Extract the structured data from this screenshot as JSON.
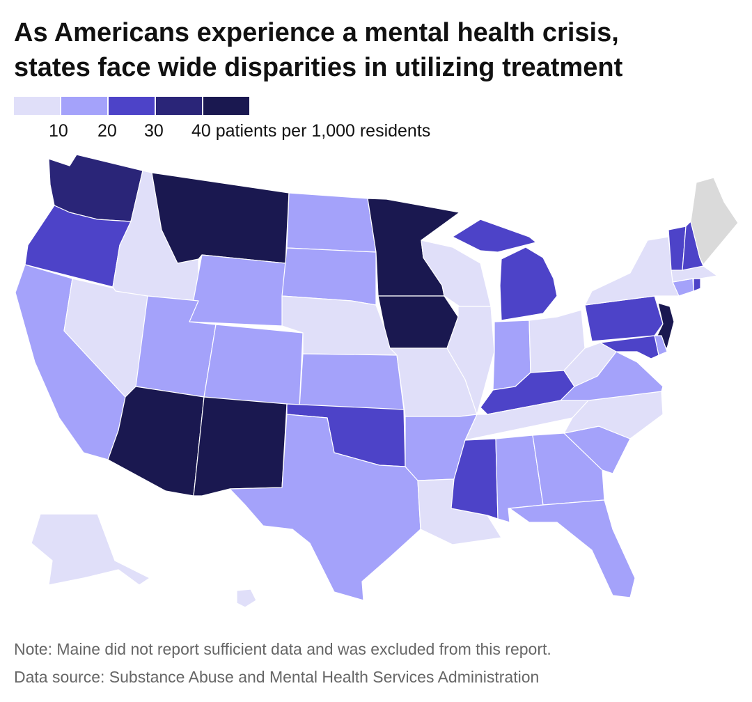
{
  "title": {
    "line1": "As Americans experience a mental health crisis,",
    "line2": "states face wide disparities in utilizing treatment"
  },
  "legend": {
    "colors": [
      "#e0dff9",
      "#a4a2fa",
      "#4d43c8",
      "#2a2578",
      "#1a1850"
    ],
    "ticks": [
      "10",
      "20",
      "30",
      "40 patients per 1,000 residents"
    ]
  },
  "colors": {
    "no_data": "#dadada"
  },
  "note": "Note: Maine did not report sufficient data and was excluded from this report.",
  "source": "Data source: Substance Abuse and Mental Health Services Administration",
  "map_data": {
    "type": "choropleth",
    "bins": [
      {
        "class": 0,
        "range": "<10"
      },
      {
        "class": 1,
        "range": "10–20"
      },
      {
        "class": 2,
        "range": "20–30"
      },
      {
        "class": 3,
        "range": "30–40"
      },
      {
        "class": 4,
        "range": "40+"
      }
    ],
    "states": [
      {
        "id": "WA",
        "class": 3
      },
      {
        "id": "OR",
        "class": 2
      },
      {
        "id": "CA",
        "class": 1
      },
      {
        "id": "NV",
        "class": 0
      },
      {
        "id": "ID",
        "class": 0
      },
      {
        "id": "MT",
        "class": 4
      },
      {
        "id": "WY",
        "class": 1
      },
      {
        "id": "UT",
        "class": 1
      },
      {
        "id": "AZ",
        "class": 4
      },
      {
        "id": "CO",
        "class": 1
      },
      {
        "id": "NM",
        "class": 4
      },
      {
        "id": "ND",
        "class": 1
      },
      {
        "id": "SD",
        "class": 1
      },
      {
        "id": "NE",
        "class": 0
      },
      {
        "id": "KS",
        "class": 1
      },
      {
        "id": "OK",
        "class": 2
      },
      {
        "id": "TX",
        "class": 1
      },
      {
        "id": "MN",
        "class": 4
      },
      {
        "id": "IA",
        "class": 4
      },
      {
        "id": "MO",
        "class": 0
      },
      {
        "id": "AR",
        "class": 1
      },
      {
        "id": "LA",
        "class": 0
      },
      {
        "id": "WI",
        "class": 0
      },
      {
        "id": "IL",
        "class": 0
      },
      {
        "id": "MI",
        "class": 2
      },
      {
        "id": "IN",
        "class": 1
      },
      {
        "id": "OH",
        "class": 0
      },
      {
        "id": "KY",
        "class": 2
      },
      {
        "id": "TN",
        "class": 0
      },
      {
        "id": "MS",
        "class": 2
      },
      {
        "id": "AL",
        "class": 1
      },
      {
        "id": "GA",
        "class": 1
      },
      {
        "id": "FL",
        "class": 1
      },
      {
        "id": "SC",
        "class": 1
      },
      {
        "id": "NC",
        "class": 0
      },
      {
        "id": "VA",
        "class": 1
      },
      {
        "id": "WV",
        "class": 0
      },
      {
        "id": "PA",
        "class": 2
      },
      {
        "id": "NY",
        "class": 0
      },
      {
        "id": "NJ",
        "class": 4
      },
      {
        "id": "DE",
        "class": 1
      },
      {
        "id": "MD",
        "class": 2
      },
      {
        "id": "CT",
        "class": 1
      },
      {
        "id": "RI",
        "class": 2
      },
      {
        "id": "MA",
        "class": 0
      },
      {
        "id": "VT",
        "class": 2
      },
      {
        "id": "NH",
        "class": 2
      },
      {
        "id": "ME",
        "class": null
      },
      {
        "id": "AK",
        "class": 0
      },
      {
        "id": "HI",
        "class": 0
      }
    ]
  }
}
